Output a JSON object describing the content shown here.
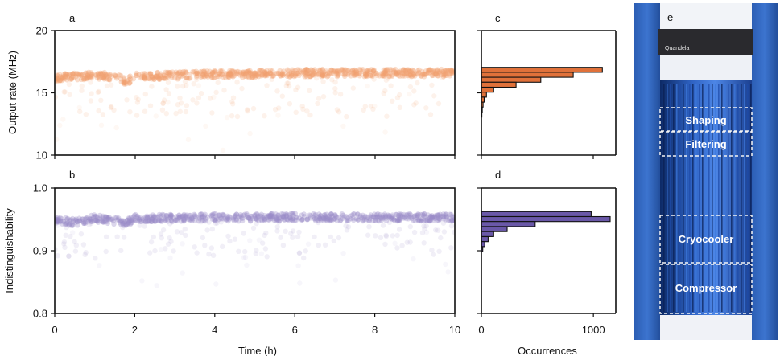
{
  "chart_data": [
    {
      "panel": "a",
      "type": "scatter",
      "ylabel": "Output rate (MHz)",
      "xlim": [
        0,
        10
      ],
      "ylim": [
        10,
        20
      ],
      "yticks": [
        10,
        15,
        20
      ],
      "color": "#f0a070",
      "series_mean": 16.4,
      "baseline": [
        {
          "x": 0,
          "y": 16.2
        },
        {
          "x": 0.5,
          "y": 16.3
        },
        {
          "x": 1,
          "y": 16.4
        },
        {
          "x": 1.5,
          "y": 16.3
        },
        {
          "x": 1.8,
          "y": 15.9
        },
        {
          "x": 2,
          "y": 16.3
        },
        {
          "x": 3,
          "y": 16.4
        },
        {
          "x": 4,
          "y": 16.5
        },
        {
          "x": 5,
          "y": 16.5
        },
        {
          "x": 6,
          "y": 16.6
        },
        {
          "x": 7,
          "y": 16.6
        },
        {
          "x": 8,
          "y": 16.6
        },
        {
          "x": 9,
          "y": 16.6
        },
        {
          "x": 10,
          "y": 16.6
        }
      ]
    },
    {
      "panel": "b",
      "type": "scatter",
      "ylabel": "Indistinguishability",
      "xlabel": "Time (h)",
      "xlim": [
        0,
        10
      ],
      "ylim": [
        0.8,
        1.0
      ],
      "yticks": [
        "0.8",
        "0.9",
        "1.0"
      ],
      "xticks": [
        0,
        2,
        4,
        6,
        8,
        10
      ],
      "color": "#9a8cc8",
      "series_mean": 0.952,
      "baseline": [
        {
          "x": 0,
          "y": 0.95
        },
        {
          "x": 0.5,
          "y": 0.945
        },
        {
          "x": 1,
          "y": 0.952
        },
        {
          "x": 1.8,
          "y": 0.945
        },
        {
          "x": 2,
          "y": 0.952
        },
        {
          "x": 3,
          "y": 0.952
        },
        {
          "x": 4,
          "y": 0.953
        },
        {
          "x": 5,
          "y": 0.953
        },
        {
          "x": 6,
          "y": 0.954
        },
        {
          "x": 7,
          "y": 0.953
        },
        {
          "x": 8,
          "y": 0.953
        },
        {
          "x": 9,
          "y": 0.953
        },
        {
          "x": 10,
          "y": 0.953
        }
      ]
    },
    {
      "panel": "c",
      "type": "bar",
      "orientation": "horizontal",
      "ylim": [
        10,
        20
      ],
      "xlim": [
        0,
        1200
      ],
      "color": "#e0713a",
      "bins": [
        {
          "y": 16.85,
          "count": 1080
        },
        {
          "y": 16.45,
          "count": 820
        },
        {
          "y": 16.05,
          "count": 530
        },
        {
          "y": 15.65,
          "count": 310
        },
        {
          "y": 15.25,
          "count": 110
        },
        {
          "y": 14.85,
          "count": 45
        },
        {
          "y": 14.45,
          "count": 25
        },
        {
          "y": 14.05,
          "count": 15
        },
        {
          "y": 13.65,
          "count": 8
        },
        {
          "y": 13.25,
          "count": 4
        }
      ]
    },
    {
      "panel": "d",
      "type": "bar",
      "orientation": "horizontal",
      "xlabel": "Occurrences",
      "ylim": [
        0.8,
        1.0
      ],
      "xlim": [
        0,
        1200
      ],
      "xticks": [
        0,
        1000
      ],
      "color": "#6a58a8",
      "bins": [
        {
          "y": 0.9585,
          "count": 980
        },
        {
          "y": 0.9505,
          "count": 1150
        },
        {
          "y": 0.9425,
          "count": 480
        },
        {
          "y": 0.9345,
          "count": 230
        },
        {
          "y": 0.9265,
          "count": 110
        },
        {
          "y": 0.9185,
          "count": 60
        },
        {
          "y": 0.9105,
          "count": 30
        },
        {
          "y": 0.9025,
          "count": 12
        }
      ]
    }
  ],
  "photo": {
    "panel": "e",
    "brand": "Quandela",
    "labels": [
      "Shaping",
      "Filtering",
      "Cryocooler",
      "Compressor"
    ]
  },
  "text": {
    "panel_a": "a",
    "panel_b": "b",
    "panel_c": "c",
    "panel_d": "d",
    "panel_e": "e",
    "y_label_top": "Output rate (MHz)",
    "y_label_bottom": "Indistinguishability",
    "x_label_time": "Time (h)",
    "x_label_occ": "Occurrences"
  }
}
